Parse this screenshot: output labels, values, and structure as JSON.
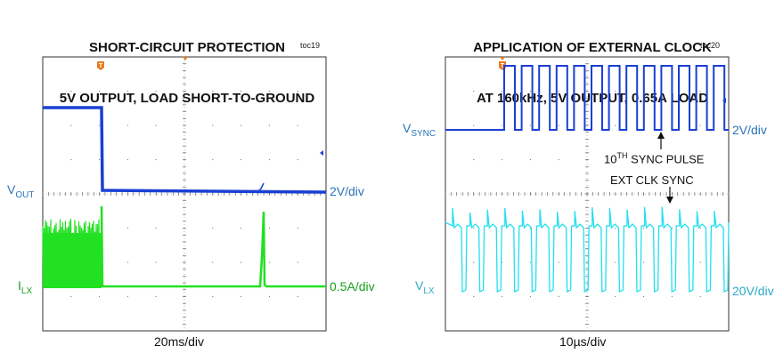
{
  "charts": [
    {
      "title_line1": "SHORT-CIRCUIT PROTECTION",
      "title_line2": "5V OUTPUT, LOAD SHORT-TO-GROUND",
      "toc": "toc19",
      "xscale": "20ms/div",
      "trigger_label": "T",
      "channels": [
        {
          "name": "V",
          "sub": "OUT",
          "scale": "2V/div",
          "color": "#1a3fd4",
          "label_color": "#2a74b8"
        },
        {
          "name": "I",
          "sub": "LX",
          "scale": "0.5A/div",
          "color": "#22e022",
          "label_color": "#1aa01a"
        }
      ]
    },
    {
      "title_line1": "APPLICATION OF EXTERNAL CLOCK",
      "title_line2": "AT 160kHz, 5V OUTPUT, 0.65A LOAD",
      "toc": "toc20",
      "xscale": "10µs/div",
      "trigger_label": "T",
      "channels": [
        {
          "name": "V",
          "sub": "SYNC",
          "scale": "2V/div",
          "color": "#1a3fd4",
          "label_color": "#2a74b8"
        },
        {
          "name": "V",
          "sub": "LX",
          "scale": "20V/div",
          "color": "#22e0ee",
          "label_color": "#2aa8c8"
        }
      ],
      "annotation1_main": "10",
      "annotation1_sup": "TH",
      "annotation1_rest": " SYNC PULSE",
      "annotation2": "EXT CLK SYNC"
    }
  ],
  "chart_data": [
    {
      "type": "line",
      "title": "SHORT-CIRCUIT PROTECTION 5V OUTPUT, LOAD SHORT-TO-GROUND",
      "xlabel": "20ms/div",
      "x_divisions": 10,
      "series": [
        {
          "name": "VOUT",
          "scale": "2V/div",
          "x_div": [
            0,
            1.0,
            1.05,
            10
          ],
          "y_div": [
            2.5,
            2.5,
            0,
            0
          ]
        },
        {
          "name": "ILX",
          "scale": "0.5A/div",
          "description_points_x_div": [
            0,
            1.0,
            1.05,
            3.8,
            3.85,
            3.9,
            10
          ],
          "y_div": [
            2.0,
            2.0,
            0,
            0,
            2.4,
            0,
            0
          ]
        }
      ]
    },
    {
      "type": "line",
      "title": "APPLICATION OF EXTERNAL CLOCK AT 160kHz, 5V OUTPUT, 0.65A LOAD",
      "xlabel": "10µs/div",
      "x_divisions": 10,
      "series": [
        {
          "name": "VSYNC",
          "scale": "2V/div",
          "pulse_count": 12,
          "pulse_start_div": 1.5,
          "period_div": 0.625
        },
        {
          "name": "VLX",
          "scale": "20V/div",
          "switching": true
        }
      ]
    }
  ]
}
